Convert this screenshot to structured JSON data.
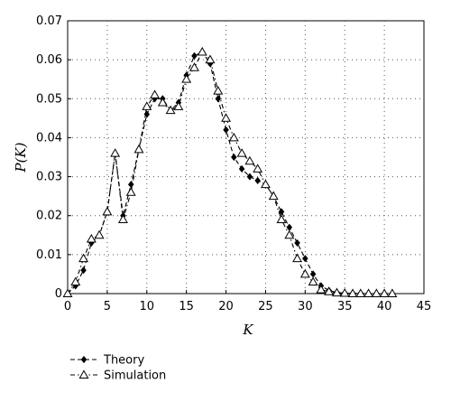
{
  "chart_data": {
    "type": "line",
    "xlabel": "K",
    "ylabel": "P(K)",
    "xlim": [
      0,
      45
    ],
    "ylim": [
      0,
      0.07
    ],
    "xticks": [
      "0",
      "5",
      "10",
      "15",
      "20",
      "25",
      "30",
      "35",
      "40",
      "45"
    ],
    "yticks": [
      "0",
      "0.01",
      "0.02",
      "0.03",
      "0.04",
      "0.05",
      "0.06",
      "0.07"
    ],
    "grid": true,
    "legend_position": "bottom-left",
    "series": [
      {
        "name": "Theory",
        "marker": "diamond-filled",
        "line": "dashed",
        "color": "#000000",
        "x": [
          0,
          1,
          2,
          3,
          4,
          5,
          6,
          7,
          8,
          9,
          10,
          11,
          12,
          13,
          14,
          15,
          16,
          17,
          18,
          19,
          20,
          21,
          22,
          23,
          24,
          25,
          26,
          27,
          28,
          29,
          30,
          31,
          32,
          33,
          34,
          35,
          36,
          37,
          38,
          39,
          40,
          41
        ],
        "y": [
          0,
          0.002,
          0.006,
          0.013,
          0.015,
          0.021,
          0.036,
          0.02,
          0.028,
          0.037,
          0.046,
          0.05,
          0.05,
          0.047,
          0.049,
          0.056,
          0.061,
          0.062,
          0.059,
          0.05,
          0.042,
          0.035,
          0.032,
          0.03,
          0.029,
          0.028,
          0.025,
          0.021,
          0.017,
          0.013,
          0.009,
          0.005,
          0.002,
          0.0008,
          0.0003,
          0.0001,
          0.0001,
          0.0001,
          0,
          0,
          0,
          0
        ]
      },
      {
        "name": "Simulation",
        "marker": "triangle-open",
        "line": "dash-dot",
        "color": "#000000",
        "x": [
          0,
          1,
          2,
          3,
          4,
          5,
          6,
          7,
          8,
          9,
          10,
          11,
          12,
          13,
          14,
          15,
          16,
          17,
          18,
          19,
          20,
          21,
          22,
          23,
          24,
          25,
          26,
          27,
          28,
          29,
          30,
          31,
          32,
          33,
          34,
          35,
          36,
          37,
          38,
          39,
          40,
          41
        ],
        "y": [
          0,
          0.003,
          0.009,
          0.014,
          0.015,
          0.021,
          0.036,
          0.019,
          0.026,
          0.037,
          0.048,
          0.051,
          0.049,
          0.047,
          0.048,
          0.055,
          0.058,
          0.062,
          0.06,
          0.052,
          0.045,
          0.04,
          0.036,
          0.034,
          0.032,
          0.028,
          0.025,
          0.019,
          0.015,
          0.009,
          0.005,
          0.003,
          0.001,
          0.0005,
          0.0002,
          0.0001,
          0,
          0,
          0,
          0,
          0,
          0
        ]
      }
    ]
  }
}
